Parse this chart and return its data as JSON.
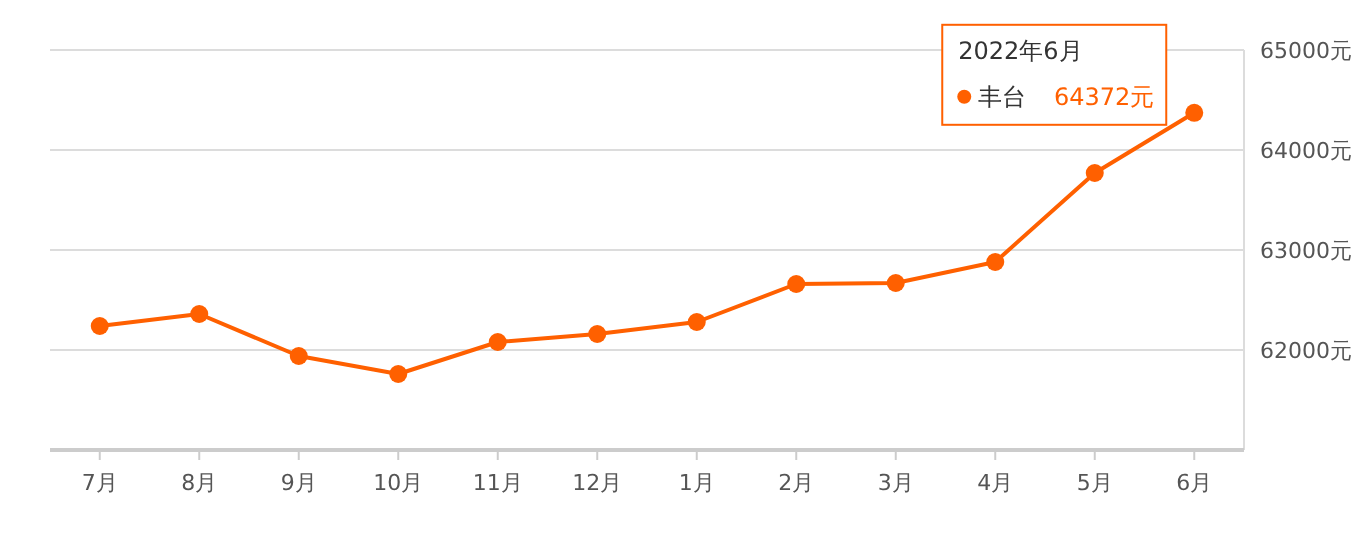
{
  "chart_data": {
    "type": "line",
    "categories": [
      "7月",
      "8月",
      "9月",
      "10月",
      "11月",
      "12月",
      "1月",
      "2月",
      "3月",
      "4月",
      "5月",
      "6月"
    ],
    "series": [
      {
        "name": "丰台",
        "color": "#ff6000",
        "values": [
          62240,
          62360,
          61940,
          61760,
          62080,
          62160,
          62280,
          62660,
          62670,
          62880,
          63770,
          64372
        ],
        "value_labels": [
          null,
          null,
          null,
          null,
          null,
          null,
          null,
          null,
          null,
          null,
          null,
          "64372元"
        ]
      }
    ],
    "ylim": [
      61000,
      65000
    ],
    "yticks": [
      {
        "value": 62000,
        "label": "62000元"
      },
      {
        "value": 63000,
        "label": "63000元"
      },
      {
        "value": 64000,
        "label": "64000元"
      },
      {
        "value": 65000,
        "label": "65000元"
      }
    ],
    "grid": "y",
    "marker": "circle",
    "line_style": "solid",
    "annotations": [
      "2022年6月"
    ]
  }
}
